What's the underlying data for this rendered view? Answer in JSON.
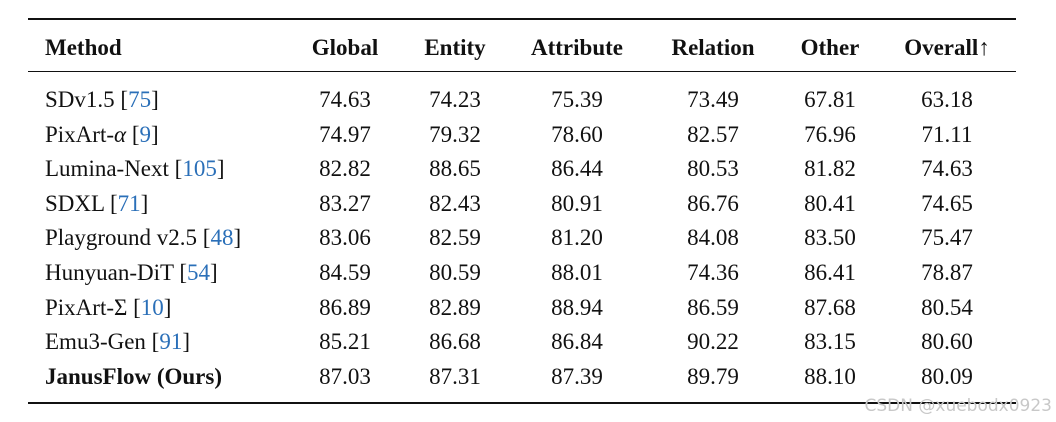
{
  "table": {
    "header": [
      "Method",
      "Global",
      "Entity",
      "Attribute",
      "Relation",
      "Other",
      "Overall↑"
    ],
    "rows": [
      {
        "method": [
          "SDv1.5 [",
          "75",
          "]"
        ],
        "scores": [
          "74.63",
          "74.23",
          "75.39",
          "73.49",
          "67.81",
          "63.18"
        ]
      },
      {
        "method": [
          "PixArt-α [",
          "9",
          "]"
        ],
        "scores": [
          "74.97",
          "79.32",
          "78.60",
          "82.57",
          "76.96",
          "71.11"
        ]
      },
      {
        "method": [
          "Lumina-Next [",
          "105",
          "]"
        ],
        "scores": [
          "82.82",
          "88.65",
          "86.44",
          "80.53",
          "81.82",
          "74.63"
        ]
      },
      {
        "method": [
          "SDXL [",
          "71",
          "]"
        ],
        "scores": [
          "83.27",
          "82.43",
          "80.91",
          "86.76",
          "80.41",
          "74.65"
        ]
      },
      {
        "method": [
          "Playground v2.5 [",
          "48",
          "]"
        ],
        "scores": [
          "83.06",
          "82.59",
          "81.20",
          "84.08",
          "83.50",
          "75.47"
        ]
      },
      {
        "method": [
          "Hunyuan-DiT [",
          "54",
          "]"
        ],
        "scores": [
          "84.59",
          "80.59",
          "88.01",
          "74.36",
          "86.41",
          "78.87"
        ]
      },
      {
        "method": [
          "PixArt-Σ [",
          "10",
          "]"
        ],
        "scores": [
          "86.89",
          "82.89",
          "88.94",
          "86.59",
          "87.68",
          "80.54"
        ]
      },
      {
        "method": [
          "Emu3-Gen [",
          "91",
          "]"
        ],
        "scores": [
          "85.21",
          "86.68",
          "86.84",
          "90.22",
          "83.15",
          "80.60"
        ]
      },
      {
        "method": [
          "JanusFlow (Ours)"
        ],
        "bold": true,
        "scores": [
          "87.03",
          "87.31",
          "87.39",
          "89.79",
          "88.10",
          "80.09"
        ]
      }
    ]
  },
  "watermark": "CSDN @xuebodx0923"
}
